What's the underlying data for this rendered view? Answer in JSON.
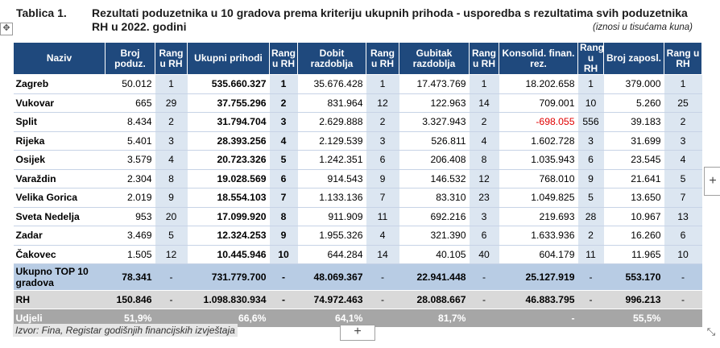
{
  "title": {
    "label": "Tablica 1.",
    "text": "Rezultati poduzetnika u 10 gradova prema kriteriju ukupnih prihoda - usporedba s rezultatima svih poduzetnika RH u 2022. godini",
    "unit_note": "(iznosi u tisućama kuna)"
  },
  "headers": [
    "Naziv",
    "Broj poduz.",
    "Rang u RH",
    "Ukupni prihodi",
    "Rang u RH",
    "Dobit razdoblja",
    "Rang u RH",
    "Gubitak razdoblja",
    "Rang u RH",
    "Konsolid. finan. rez.",
    "Rang u RH",
    "Broj zaposl.",
    "Rang u RH"
  ],
  "rows": [
    {
      "name": "Zagreb",
      "broj": "50.012",
      "r1": "1",
      "prihodi": "535.660.327",
      "r2": "1",
      "dobit": "35.676.428",
      "r3": "1",
      "gubitak": "17.473.769",
      "r4": "1",
      "konsolid": "18.202.658",
      "r5": "1",
      "zaposl": "379.000",
      "r6": "1"
    },
    {
      "name": "Vukovar",
      "broj": "665",
      "r1": "29",
      "prihodi": "37.755.296",
      "r2": "2",
      "dobit": "831.964",
      "r3": "12",
      "gubitak": "122.963",
      "r4": "14",
      "konsolid": "709.001",
      "r5": "10",
      "zaposl": "5.260",
      "r6": "25"
    },
    {
      "name": "Split",
      "broj": "8.434",
      "r1": "2",
      "prihodi": "31.794.704",
      "r2": "3",
      "dobit": "2.629.888",
      "r3": "2",
      "gubitak": "3.327.943",
      "r4": "2",
      "konsolid": "-698.055",
      "r5": "556",
      "zaposl": "39.183",
      "r6": "2"
    },
    {
      "name": "Rijeka",
      "broj": "5.401",
      "r1": "3",
      "prihodi": "28.393.256",
      "r2": "4",
      "dobit": "2.129.539",
      "r3": "3",
      "gubitak": "526.811",
      "r4": "4",
      "konsolid": "1.602.728",
      "r5": "3",
      "zaposl": "31.699",
      "r6": "3"
    },
    {
      "name": "Osijek",
      "broj": "3.579",
      "r1": "4",
      "prihodi": "20.723.326",
      "r2": "5",
      "dobit": "1.242.351",
      "r3": "6",
      "gubitak": "206.408",
      "r4": "8",
      "konsolid": "1.035.943",
      "r5": "6",
      "zaposl": "23.545",
      "r6": "4"
    },
    {
      "name": "Varaždin",
      "broj": "2.304",
      "r1": "8",
      "prihodi": "19.028.569",
      "r2": "6",
      "dobit": "914.543",
      "r3": "9",
      "gubitak": "146.532",
      "r4": "12",
      "konsolid": "768.010",
      "r5": "9",
      "zaposl": "21.641",
      "r6": "5"
    },
    {
      "name": "Velika Gorica",
      "broj": "2.019",
      "r1": "9",
      "prihodi": "18.554.103",
      "r2": "7",
      "dobit": "1.133.136",
      "r3": "7",
      "gubitak": "83.310",
      "r4": "23",
      "konsolid": "1.049.825",
      "r5": "5",
      "zaposl": "13.650",
      "r6": "7"
    },
    {
      "name": "Sveta Nedelja",
      "broj": "953",
      "r1": "20",
      "prihodi": "17.099.920",
      "r2": "8",
      "dobit": "911.909",
      "r3": "11",
      "gubitak": "692.216",
      "r4": "3",
      "konsolid": "219.693",
      "r5": "28",
      "zaposl": "10.967",
      "r6": "13"
    },
    {
      "name": "Zadar",
      "broj": "3.469",
      "r1": "5",
      "prihodi": "12.324.253",
      "r2": "9",
      "dobit": "1.955.326",
      "r3": "4",
      "gubitak": "321.390",
      "r4": "6",
      "konsolid": "1.633.936",
      "r5": "2",
      "zaposl": "16.260",
      "r6": "6"
    },
    {
      "name": "Čakovec",
      "broj": "1.505",
      "r1": "12",
      "prihodi": "10.445.946",
      "r2": "10",
      "dobit": "644.284",
      "r3": "14",
      "gubitak": "40.105",
      "r4": "40",
      "konsolid": "604.179",
      "r5": "11",
      "zaposl": "11.965",
      "r6": "10"
    }
  ],
  "total_row": {
    "name": "Ukupno TOP 10 gradova",
    "broj": "78.341",
    "r1": "-",
    "prihodi": "731.779.700",
    "r2": "-",
    "dobit": "48.069.367",
    "r3": "-",
    "gubitak": "22.941.448",
    "r4": "-",
    "konsolid": "25.127.919",
    "r5": "-",
    "zaposl": "553.170",
    "r6": "-"
  },
  "rh_row": {
    "name": "RH",
    "broj": "150.846",
    "r1": "-",
    "prihodi": "1.098.830.934",
    "r2": "-",
    "dobit": "74.972.463",
    "r3": "-",
    "gubitak": "28.088.667",
    "r4": "-",
    "konsolid": "46.883.795",
    "r5": "-",
    "zaposl": "996.213",
    "r6": "-"
  },
  "share_row": {
    "name": "Udjeli",
    "broj": "51,9%",
    "r1": "",
    "prihodi": "66,6%",
    "r2": "",
    "dobit": "64,1%",
    "r3": "",
    "gubitak": "81,7%",
    "r4": "",
    "konsolid": "-",
    "r5": "",
    "zaposl": "55,5%",
    "r6": ""
  },
  "source": "Izvor: Fina, Registar godišnjih financijskih izvještaja",
  "icons": {
    "move": "✥",
    "add_row": "+",
    "add_column": "+",
    "resize": "⤡"
  },
  "colors": {
    "header": "#1f497d",
    "band": "#dce6f1",
    "total": "#b8cce4",
    "rh": "#d9d9d9",
    "share": "#a6a6a6",
    "negative": "#e00000"
  }
}
